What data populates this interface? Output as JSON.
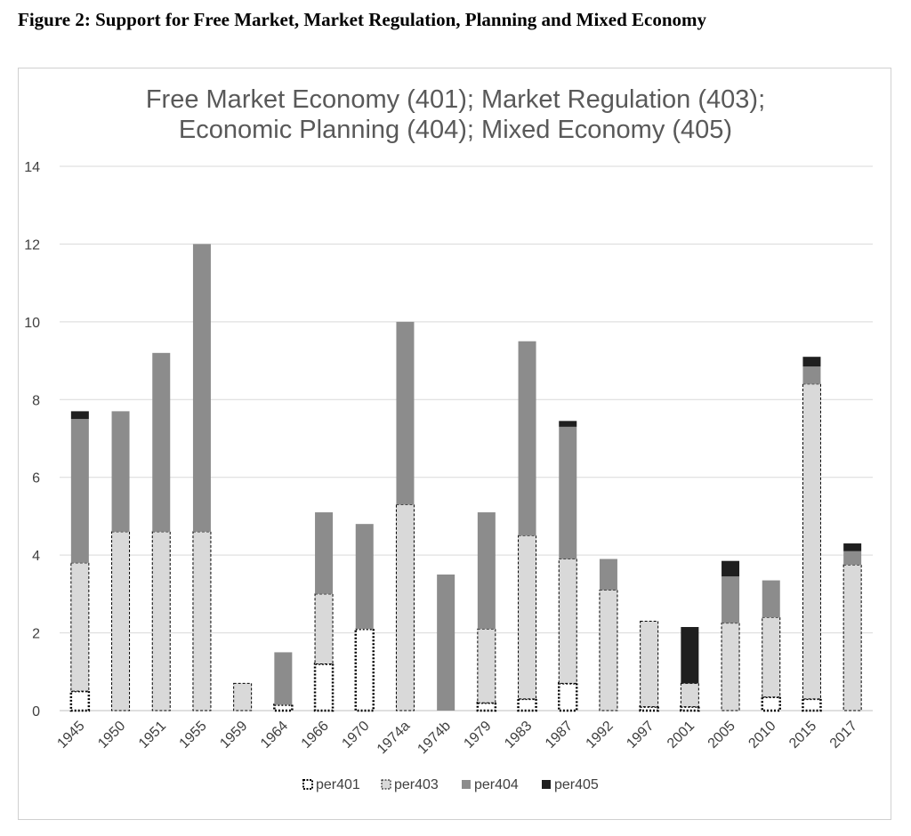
{
  "caption": "Figure 2: Support for Free Market, Market Regulation, Planning and Mixed Economy",
  "chart_data": {
    "type": "bar",
    "stacked": true,
    "title_lines": [
      "Free Market Economy (401); Market Regulation (403);",
      "Economic Planning (404); Mixed Economy (405)"
    ],
    "xlabel": "",
    "ylabel": "",
    "ylim": [
      0,
      14
    ],
    "yticks": [
      0,
      2,
      4,
      6,
      8,
      10,
      12,
      14
    ],
    "grid": true,
    "legend_position": "bottom",
    "categories": [
      "1945",
      "1950",
      "1951",
      "1955",
      "1959",
      "1964",
      "1966",
      "1970",
      "1974a",
      "1974b",
      "1979",
      "1983",
      "1987",
      "1992",
      "1997",
      "2001",
      "2005",
      "2010",
      "2015",
      "2017"
    ],
    "series": [
      {
        "name": "per401",
        "color": "#ffffff",
        "pattern": "dotted-outline",
        "values": [
          0.5,
          0,
          0,
          0,
          0,
          0.15,
          1.2,
          2.1,
          0,
          0,
          0.2,
          0.3,
          0.7,
          0,
          0.1,
          0.1,
          0,
          0.35,
          0.3,
          0
        ]
      },
      {
        "name": "per403",
        "color": "#d9d9d9",
        "pattern": "dashed-outline",
        "values": [
          3.3,
          4.6,
          4.6,
          4.6,
          0.7,
          0,
          1.8,
          0,
          5.3,
          0,
          1.9,
          4.2,
          3.2,
          3.1,
          2.2,
          0.6,
          2.25,
          2.05,
          8.1,
          3.75
        ]
      },
      {
        "name": "per404",
        "color": "#8c8c8c",
        "pattern": "solid",
        "values": [
          3.7,
          3.1,
          4.6,
          7.4,
          0,
          1.35,
          2.1,
          2.7,
          4.7,
          3.5,
          3.0,
          5.0,
          3.4,
          0.8,
          0,
          0,
          1.2,
          0.95,
          0.45,
          0.35
        ]
      },
      {
        "name": "per405",
        "color": "#1f1f1f",
        "pattern": "solid",
        "values": [
          0.2,
          0,
          0,
          0,
          0,
          0,
          0,
          0,
          0,
          0,
          0,
          0,
          0.15,
          0,
          0,
          1.45,
          0.4,
          0,
          0.25,
          0.2
        ]
      }
    ]
  }
}
